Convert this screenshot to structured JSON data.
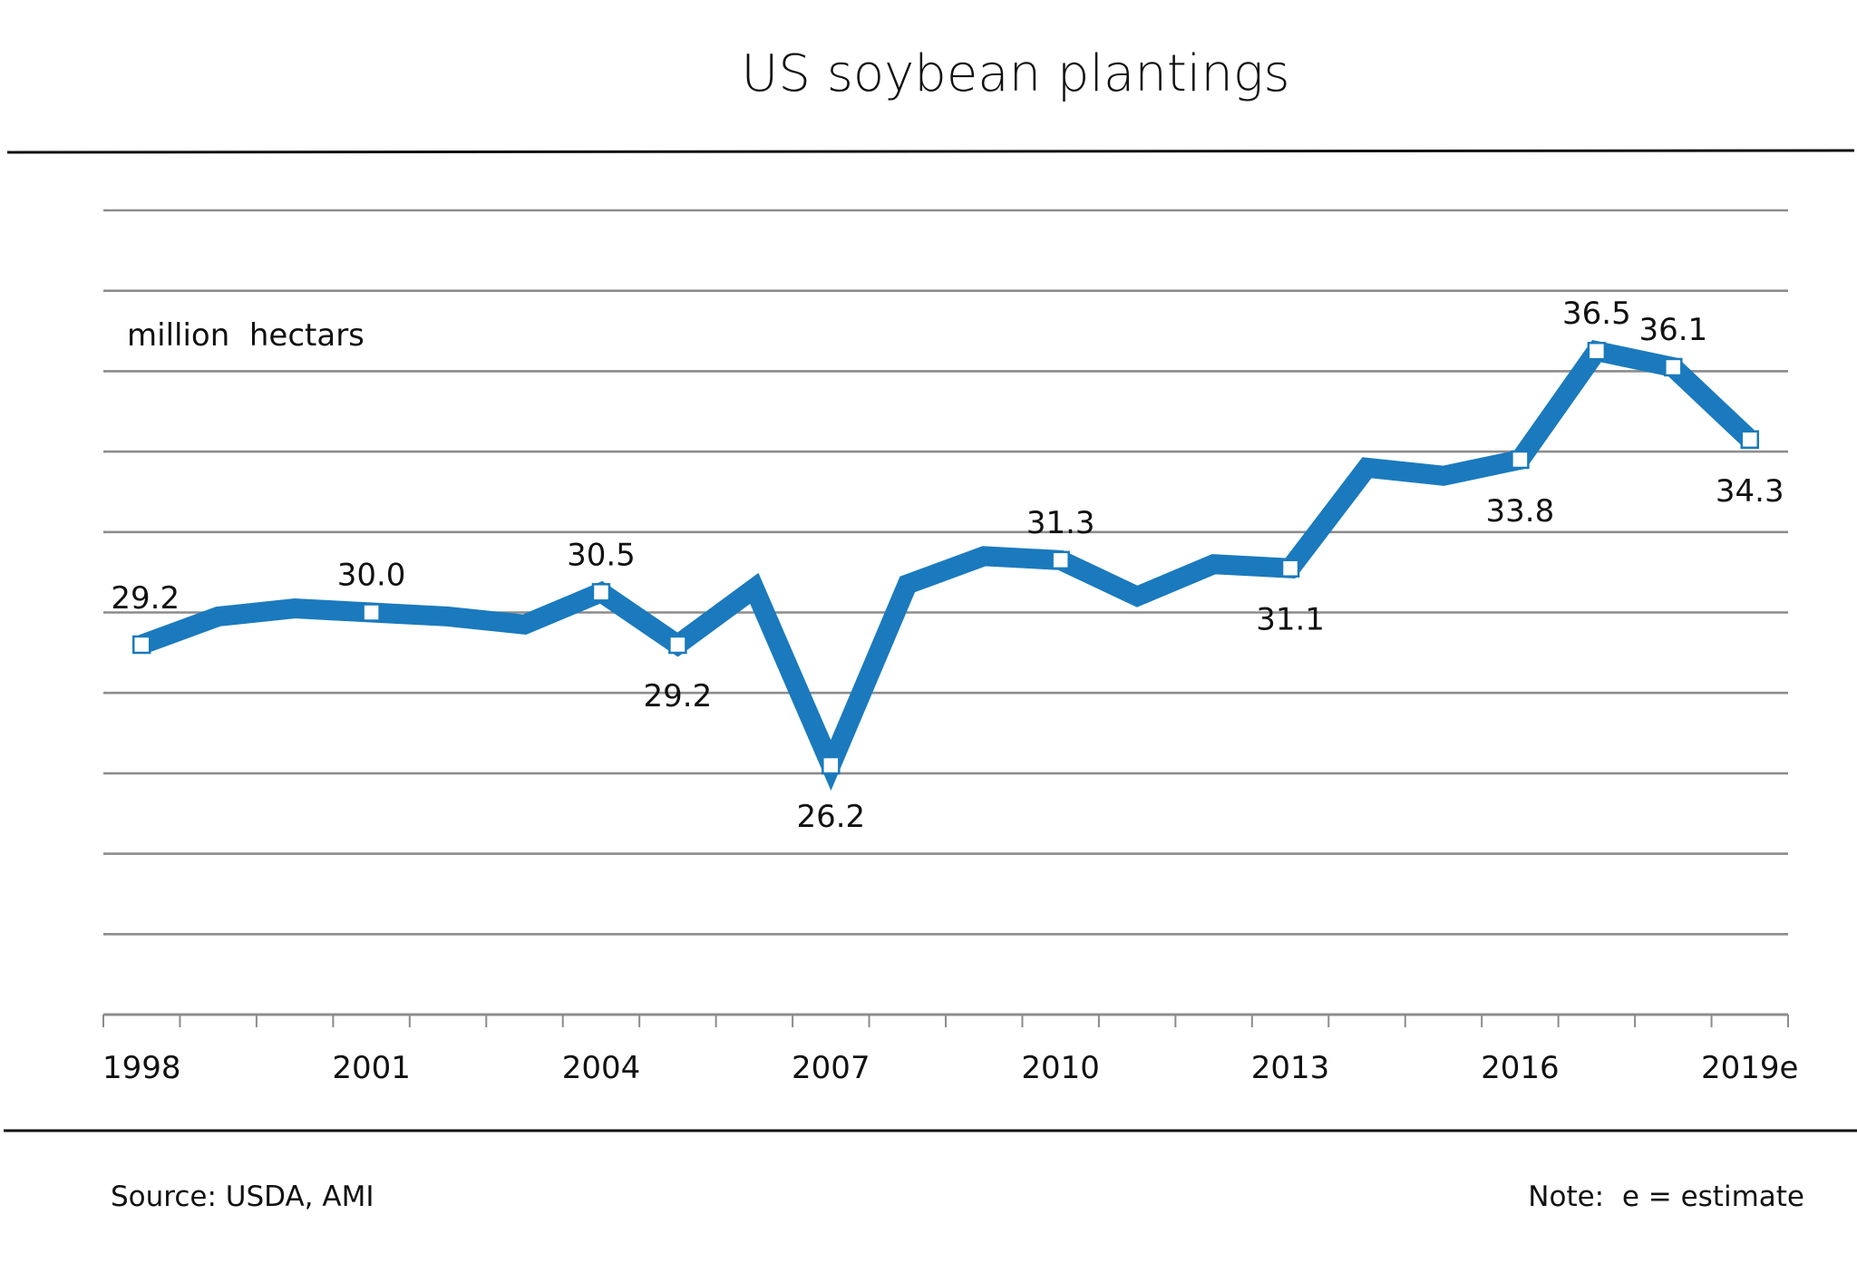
{
  "chart_data": {
    "type": "line",
    "title": "US soybean plantings",
    "ylabel": "million  hectars",
    "xlabel": "",
    "ylim": [
      20,
      40
    ],
    "y_gridlines": [
      20,
      22,
      24,
      26,
      28,
      30,
      32,
      34,
      36,
      38,
      40
    ],
    "grid": true,
    "x": [
      "1998",
      "1999",
      "2000",
      "2001",
      "2002",
      "2003",
      "2004",
      "2005",
      "2006",
      "2007",
      "2008",
      "2009",
      "2010",
      "2011",
      "2012",
      "2013",
      "2014",
      "2015",
      "2016",
      "2017",
      "2018",
      "2019e"
    ],
    "x_tick_labels": [
      "1998",
      "2001",
      "2004",
      "2007",
      "2010",
      "2013",
      "2016",
      "2019e"
    ],
    "series": [
      {
        "name": "US soybean plantings",
        "color": "#1a7abd",
        "values": [
          29.2,
          29.9,
          30.1,
          30.0,
          29.9,
          29.7,
          30.5,
          29.2,
          30.6,
          26.2,
          30.7,
          31.4,
          31.3,
          30.4,
          31.2,
          31.1,
          33.6,
          33.4,
          33.8,
          36.5,
          36.1,
          34.3
        ]
      }
    ],
    "data_labels": [
      {
        "year": "1998",
        "text": "29.2",
        "position": "above"
      },
      {
        "year": "2001",
        "text": "30.0",
        "position": "above"
      },
      {
        "year": "2004",
        "text": "30.5",
        "position": "above"
      },
      {
        "year": "2005",
        "text": "29.2",
        "position": "below"
      },
      {
        "year": "2007",
        "text": "26.2",
        "position": "below"
      },
      {
        "year": "2010",
        "text": "31.3",
        "position": "above"
      },
      {
        "year": "2013",
        "text": "31.1",
        "position": "below"
      },
      {
        "year": "2016",
        "text": "33.8",
        "position": "below"
      },
      {
        "year": "2017",
        "text": "36.5",
        "position": "above"
      },
      {
        "year": "2018",
        "text": "36.1",
        "position": "above"
      },
      {
        "year": "2019e",
        "text": "34.3",
        "position": "below"
      }
    ],
    "legend": "none"
  },
  "footer": {
    "source": "Source: USDA, AMI",
    "note": "Note:  e = estimate"
  }
}
